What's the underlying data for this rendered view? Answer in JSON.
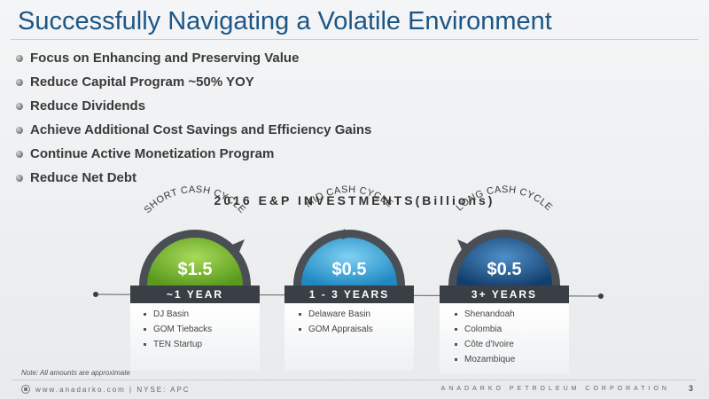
{
  "title": "Successfully Navigating a Volatile Environment",
  "bullets": [
    "Focus on Enhancing and Preserving Value",
    "Reduce Capital Program ~50% YOY",
    "Reduce Dividends",
    "Achieve Additional Cost Savings and Efficiency Gains",
    "Continue Active Monetization Program",
    "Reduce Net Debt"
  ],
  "investments_title": "2016 E&P INVESTMENTS(Billions)",
  "cycles": [
    {
      "arc_label": "SHORT CASH CYCLE",
      "amount": "$1.5",
      "duration": "~1 YEAR",
      "color": "#76b82a",
      "items": [
        "DJ Basin",
        "GOM Tiebacks",
        "TEN Startup"
      ]
    },
    {
      "arc_label": "MID CASH CYCLE",
      "amount": "$0.5",
      "duration": "1 - 3 YEARS",
      "color": "#3aa8dc",
      "items": [
        "Delaware Basin",
        "GOM Appraisals"
      ]
    },
    {
      "arc_label": "LONG CASH CYCLE",
      "amount": "$0.5",
      "duration": "3+ YEARS",
      "color": "#1f5f99",
      "items": [
        "Shenandoah",
        "Colombia",
        "Côte d'Ivoire",
        "Mozambique"
      ]
    }
  ],
  "note": "Note: All amounts are approximate",
  "footer": {
    "left": "www.anadarko.com | NYSE: APC",
    "right": "ANADARKO PETROLEUM CORPORATION",
    "page": "3"
  },
  "colors": {
    "title": "#1c5687",
    "year_bar": "#3a3f45",
    "gauge_rim": "#4a4f55"
  }
}
